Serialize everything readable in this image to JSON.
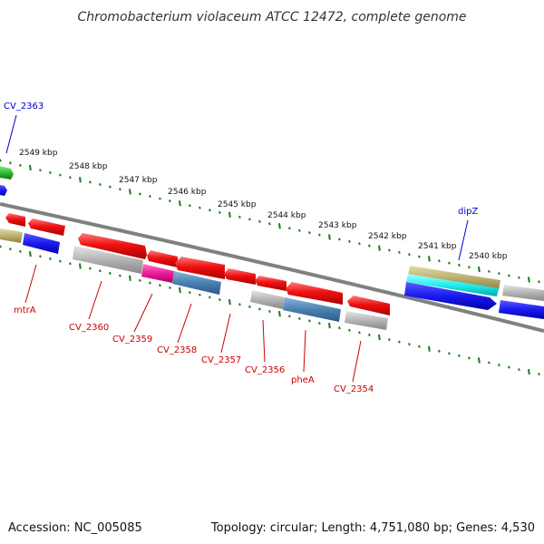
{
  "title": "Chromobacterium violaceum ATCC 12472, complete genome",
  "footer": {
    "accession": "Accession: NC_005085",
    "topology": "Topology: circular; Length: 4,751,080 bp; Genes: 4,530"
  },
  "kbp_ticks": [
    "2549 kbp",
    "2548 kbp",
    "2547 kbp",
    "2546 kbp",
    "2545 kbp",
    "2544 kbp",
    "2543 kbp",
    "2542 kbp",
    "2541 kbp",
    "2540 kbp"
  ],
  "genes_top": [
    "CV_2363",
    "dipZ"
  ],
  "genes_bottom": [
    "mtrA",
    "CV_2360",
    "CV_2359",
    "CV_2358",
    "CV_2357",
    "CV_2356",
    "pheA",
    "CV_2354"
  ],
  "colors": {
    "background": "#ffffff",
    "backbone": "#808080",
    "tick": "#1a7a1a",
    "label_blue": "#0000cc",
    "label_red": "#cc0000",
    "red": "#ee1111",
    "gray": "#b0b0b0",
    "blue": "#1a1aee",
    "steel": "#4a80b0",
    "magenta": "#ee1a99",
    "khaki": "#bbb070",
    "cyan": "#22eeee",
    "green": "#33bb33"
  }
}
